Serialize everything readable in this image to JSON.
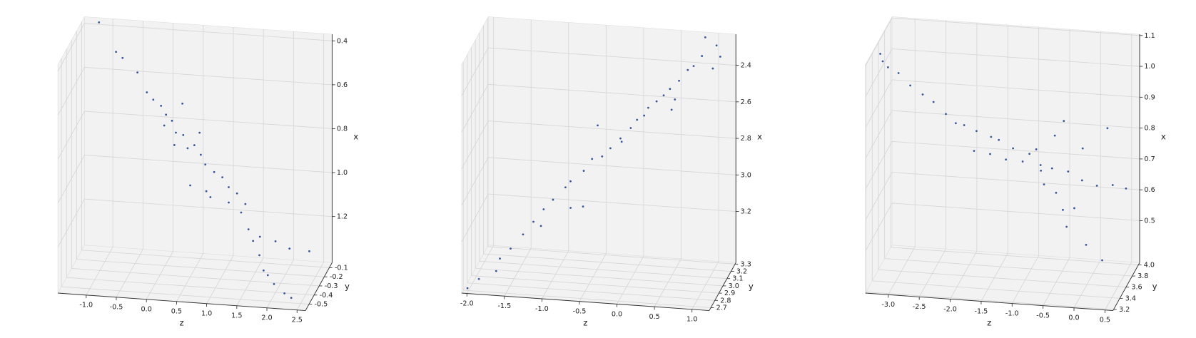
{
  "chart_data": [
    {
      "type": "scatter3d",
      "xlabel": "x",
      "ylabel": "y",
      "zlabel": "z",
      "color": "#34559a",
      "grid": true,
      "xlim": [
        1.41,
        0.37
      ],
      "ylim": [
        -0.57,
        -0.045
      ],
      "zlim": [
        -1.47,
        2.64
      ],
      "xticks": [
        0.4,
        0.6,
        0.8,
        {
          "value": 1,
          "label": "1.0"
        },
        1.2
      ],
      "yticks": [
        -0.1,
        -0.2,
        -0.3,
        -0.4,
        -0.5
      ],
      "zticks": [
        {
          "value": -1,
          "label": "-1.0"
        },
        -0.5,
        {
          "value": 0,
          "label": "0.0"
        },
        0.5,
        {
          "value": 1,
          "label": "1.0"
        },
        1.5,
        {
          "value": 2,
          "label": "2.0"
        },
        2.5
      ],
      "x": [
        0.35,
        0.47,
        0.5,
        0.57,
        0.64,
        0.68,
        0.71,
        0.74,
        0.77,
        0.81,
        0.84,
        0.89,
        0.87,
        0.92,
        0.95,
        0.99,
        1.02,
        1.05,
        1.08,
        1.13,
        1.05,
        1.08,
        1.12,
        1.17,
        1.24,
        1.3,
        1.35,
        1.31,
        1.33,
        1.36,
        1.39,
        1.4,
        1.27,
        1.29,
        1.31,
        1.32,
        0.68,
        0.82,
        0.79,
        0.88,
        1.11
      ],
      "y": [
        -0.14,
        -0.16,
        -0.15,
        -0.13,
        -0.17,
        -0.15,
        -0.14,
        -0.16,
        -0.15,
        -0.18,
        -0.13,
        -0.15,
        -0.16,
        -0.14,
        -0.17,
        -0.15,
        -0.13,
        -0.16,
        -0.15,
        -0.14,
        -0.17,
        -0.15,
        -0.16,
        -0.14,
        -0.15,
        -0.13,
        -0.16,
        -0.41,
        -0.41,
        -0.43,
        -0.45,
        -0.47,
        -0.15,
        -0.14,
        -0.16,
        -0.15,
        -0.17,
        -0.14,
        -0.16,
        -0.15,
        -0.14
      ],
      "z": [
        -1.15,
        -0.85,
        -0.75,
        -0.52,
        -0.33,
        -0.24,
        -0.12,
        -0.02,
        0.07,
        0.16,
        0.24,
        0.33,
        0.45,
        0.54,
        0.64,
        0.77,
        0.89,
        1.02,
        1.15,
        1.28,
        0.39,
        0.64,
        1.02,
        1.21,
        1.34,
        1.4,
        1.53,
        1.81,
        1.88,
        2.0,
        2.19,
        2.32,
        1.53,
        1.78,
        2.03,
        2.35,
        0.26,
        0.52,
        -0.05,
        0.11,
        0.7
      ]
    },
    {
      "type": "scatter3d",
      "xlabel": "x",
      "ylabel": "y",
      "zlabel": "z",
      "color": "#34559a",
      "grid": true,
      "xlim": [
        3.48,
        2.23
      ],
      "ylim": [
        2.66,
        3.32
      ],
      "zlim": [
        -2.07,
        1.23
      ],
      "xticks": [
        2.4,
        2.6,
        2.8,
        {
          "value": 3,
          "label": "3.0"
        },
        3.2
      ],
      "yticks": [
        2.7,
        2.8,
        2.9,
        {
          "value": 3,
          "label": "3.0"
        },
        3.1,
        3.2,
        3.3
      ],
      "zticks": [
        {
          "value": -2,
          "label": "-2.0"
        },
        -1.5,
        {
          "value": -1,
          "label": "-1.0"
        },
        -0.5,
        {
          "value": 0,
          "label": "0.0"
        },
        0.5,
        {
          "value": 1,
          "label": "1.0"
        }
      ],
      "x": [
        3.48,
        3.45,
        3.33,
        3.35,
        3.28,
        3.19,
        3.13,
        3.07,
        3.01,
        2.95,
        2.9,
        2.84,
        2.81,
        2.77,
        2.7,
        2.66,
        2.6,
        2.57,
        2.5,
        2.46,
        2.41,
        2.37,
        2.32,
        2.28,
        2.23,
        2.23,
        2.27,
        2.33,
        2.29,
        2.54,
        2.47,
        2.65,
        3.05,
        3.05,
        3.21,
        3.4,
        2.73,
        2.53
      ],
      "y": [
        2.73,
        2.79,
        2.79,
        2.98,
        3.01,
        2.97,
        3.0,
        2.99,
        3.02,
        2.96,
        2.99,
        3.01,
        2.98,
        3.0,
        2.97,
        3.02,
        2.99,
        2.98,
        3.01,
        3.0,
        2.97,
        2.99,
        3.02,
        2.98,
        3.0,
        3.25,
        3.25,
        3.25,
        2.99,
        3.01,
        2.98,
        3.0,
        2.85,
        2.88,
        2.97,
        2.79,
        3.0,
        2.99
      ],
      "z": [
        -2.03,
        -1.91,
        -1.63,
        -1.59,
        -1.44,
        -1.28,
        -1.16,
        -1.03,
        -0.88,
        -0.78,
        -0.62,
        -0.52,
        -0.37,
        -0.27,
        -0.12,
        -0.01,
        0.09,
        0.19,
        0.34,
        0.44,
        0.54,
        0.65,
        0.75,
        0.85,
        0.95,
        0.86,
        1.01,
        1.06,
        1.1,
        0.54,
        0.6,
        -0.44,
        -0.72,
        -0.57,
        -1.18,
        -1.68,
        -0.12,
        0.24
      ]
    },
    {
      "type": "scatter3d",
      "xlabel": "x",
      "ylabel": "y",
      "zlabel": "z",
      "color": "#34559a",
      "grid": true,
      "xlim": [
        0.364,
        1.104
      ],
      "ylim": [
        3.18,
        4.04
      ],
      "zlim": [
        -3.37,
        0.63
      ],
      "xticks": [
        0.5,
        0.6,
        0.7,
        0.8,
        0.9,
        {
          "value": 1,
          "label": "1.0"
        },
        1.1
      ],
      "yticks": [
        3.2,
        3.4,
        3.6,
        3.8,
        {
          "value": 4,
          "label": "4.0"
        }
      ],
      "zticks": [
        {
          "value": -3,
          "label": "-3.0"
        },
        -2.5,
        {
          "value": -2,
          "label": "-2.0"
        },
        -1.5,
        {
          "value": -1,
          "label": "-1.0"
        },
        -0.5,
        {
          "value": 0,
          "label": "0.0"
        },
        0.5
      ],
      "x": [
        1.06,
        1.04,
        1.02,
        1.0,
        0.97,
        0.94,
        0.92,
        0.88,
        0.86,
        0.85,
        0.83,
        0.82,
        0.81,
        0.79,
        0.77,
        0.74,
        0.73,
        0.72,
        0.7,
        0.69,
        0.69,
        0.68,
        0.78,
        0.77,
        0.75,
        0.74,
        0.72,
        0.68,
        0.65,
        0.6,
        0.55,
        0.49,
        0.44,
        0.82,
        0.86,
        0.86,
        0.79,
        0.8,
        0.61
      ],
      "y": [
        3.62,
        3.6,
        3.61,
        3.63,
        3.59,
        3.61,
        3.6,
        3.62,
        3.58,
        3.61,
        3.63,
        3.6,
        3.61,
        3.59,
        3.62,
        3.6,
        3.61,
        3.63,
        3.6,
        3.58,
        3.61,
        3.62,
        3.55,
        3.57,
        3.6,
        3.64,
        3.61,
        3.59,
        3.62,
        3.6,
        3.58,
        3.61,
        3.63,
        3.7,
        3.75,
        3.68,
        3.6,
        3.62,
        3.59
      ],
      "z": [
        -3.35,
        -3.3,
        -3.22,
        -3.06,
        -2.85,
        -2.66,
        -2.48,
        -2.29,
        -2.11,
        -1.99,
        -1.8,
        -1.55,
        -1.43,
        -1.19,
        -0.94,
        -0.75,
        -0.57,
        -0.32,
        -0.08,
        0.17,
        0.41,
        0.62,
        -1.8,
        -1.55,
        -1.31,
        -1.06,
        -0.75,
        -0.69,
        -0.51,
        -0.39,
        -0.32,
        -0.02,
        0.23,
        -0.57,
        -0.45,
        0.29,
        -0.82,
        -0.08,
        -0.2
      ]
    }
  ]
}
